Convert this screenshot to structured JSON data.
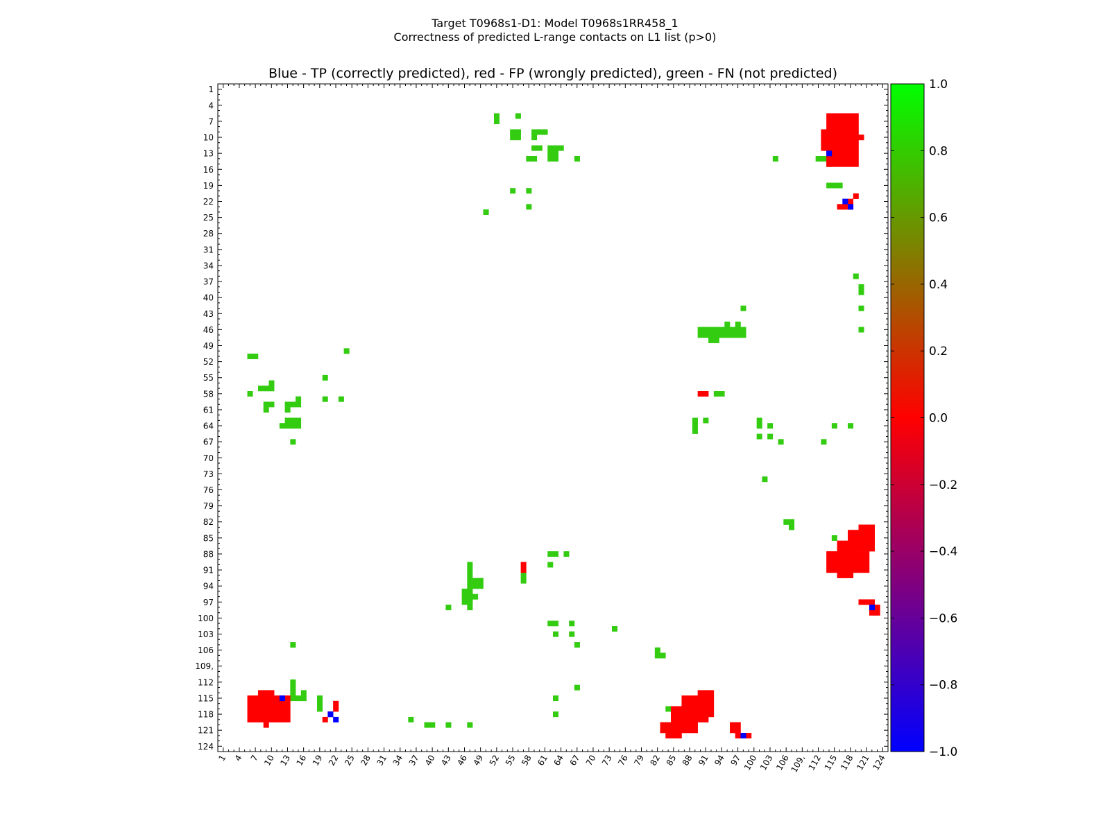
{
  "title_line1": "Target T0968s1-D1: Model T0968s1RR458_1",
  "title_line2": "Correctness of predicted L-range contacts on L1 list (p>0)",
  "axes_title": "Blue - TP (correctly predicted), red - FP (wrongly predicted), green - FN (not predicted)",
  "colors": {
    "tp": "#0000ff",
    "fp": "#ff0000",
    "fn": "#33cc11"
  },
  "chart_data": {
    "type": "heatmap",
    "x_range": [
      1,
      124
    ],
    "y_range": [
      1,
      124
    ],
    "y_inverted": true,
    "tick_values": [
      1,
      4,
      7,
      10,
      13,
      16,
      19,
      22,
      25,
      28,
      31,
      34,
      37,
      40,
      43,
      46,
      49,
      52,
      55,
      58,
      61,
      64,
      67,
      70,
      73,
      76,
      79,
      82,
      85,
      88,
      91,
      94,
      97,
      100,
      103,
      106,
      109,
      112,
      115,
      118,
      121,
      124
    ],
    "tick_labels": [
      "1",
      "4",
      "7",
      "10",
      "13",
      "16",
      "19",
      "22",
      "25",
      "28",
      "31",
      "34",
      "37",
      "40",
      "43",
      "46",
      "49",
      "52",
      "55",
      "58",
      "61",
      "64",
      "67",
      "70",
      "73",
      "76",
      "79",
      "82",
      "85",
      "88",
      "91",
      "94",
      "97",
      "100",
      "103",
      "106",
      "109,",
      "112",
      "115",
      "118",
      "121",
      "124"
    ],
    "colorbar": {
      "range": [
        -1.0,
        1.0
      ],
      "ticks": [
        "1.0",
        "0.8",
        "0.6",
        "0.4",
        "0.2",
        "0.0",
        "−0.2",
        "−0.4",
        "−0.6",
        "−0.8",
        "−1.0"
      ],
      "tick_values": [
        1.0,
        0.8,
        0.6,
        0.4,
        0.2,
        0.0,
        -0.2,
        -0.4,
        -0.6,
        -0.8,
        -1.0
      ],
      "stops": [
        "#0000ff",
        "#ff0000",
        "#00ff00"
      ]
    },
    "cell_types": {
      "tp": -1,
      "fp": 0,
      "fn": 1
    },
    "fp_blocks": [
      [
        114,
        6,
        119,
        15
      ],
      [
        113,
        9,
        115,
        12
      ],
      [
        120,
        10,
        120,
        10
      ],
      [
        116,
        23,
        118,
        23
      ],
      [
        119,
        21,
        119,
        21
      ],
      [
        118,
        22,
        118,
        22
      ],
      [
        116,
        86,
        119,
        90
      ],
      [
        114,
        88,
        121,
        91
      ],
      [
        118,
        84,
        122,
        87
      ],
      [
        120,
        83,
        122,
        85
      ],
      [
        116,
        91,
        118,
        92
      ],
      [
        120,
        97,
        122,
        97
      ],
      [
        122,
        98,
        123,
        99
      ],
      [
        6,
        115,
        13,
        119
      ],
      [
        8,
        114,
        10,
        114
      ],
      [
        9,
        120,
        9,
        120
      ],
      [
        22,
        116,
        22,
        117
      ],
      [
        21,
        118,
        21,
        118
      ],
      [
        20,
        119,
        20,
        119
      ],
      [
        85,
        117,
        89,
        121
      ],
      [
        87,
        115,
        91,
        119
      ],
      [
        83,
        120,
        86,
        121
      ],
      [
        90,
        114,
        92,
        118
      ],
      [
        84,
        122,
        86,
        122
      ],
      [
        96,
        120,
        97,
        121
      ],
      [
        97,
        122,
        99,
        122
      ],
      [
        57,
        90,
        57,
        91
      ],
      [
        90,
        58,
        91,
        58
      ]
    ],
    "tp_cells": [
      [
        114,
        13
      ],
      [
        117,
        22
      ],
      [
        118,
        23
      ],
      [
        122,
        98
      ],
      [
        12,
        115
      ],
      [
        21,
        118
      ],
      [
        22,
        119
      ],
      [
        98,
        122
      ]
    ],
    "fn_blocks": [
      [
        52,
        6,
        52,
        7
      ],
      [
        56,
        6,
        56,
        6
      ],
      [
        55,
        9,
        56,
        10
      ],
      [
        56,
        9,
        56,
        9
      ],
      [
        59,
        9,
        59,
        10
      ],
      [
        60,
        9,
        61,
        9
      ],
      [
        59,
        12,
        60,
        12
      ],
      [
        58,
        14,
        59,
        14
      ],
      [
        62,
        12,
        63,
        14
      ],
      [
        64,
        12,
        64,
        12
      ],
      [
        67,
        14,
        67,
        14
      ],
      [
        55,
        20,
        55,
        20
      ],
      [
        58,
        20,
        58,
        20
      ],
      [
        58,
        23,
        58,
        23
      ],
      [
        50,
        24,
        50,
        24
      ],
      [
        104,
        14,
        104,
        14
      ],
      [
        112,
        14,
        114,
        14
      ],
      [
        114,
        15,
        114,
        15
      ],
      [
        114,
        19,
        116,
        19
      ],
      [
        119,
        36,
        119,
        36
      ],
      [
        120,
        38,
        120,
        39
      ],
      [
        120,
        42,
        120,
        42
      ],
      [
        120,
        46,
        120,
        46
      ],
      [
        98,
        42,
        98,
        42
      ],
      [
        90,
        46,
        98,
        47
      ],
      [
        95,
        45,
        95,
        45
      ],
      [
        97,
        45,
        97,
        45
      ],
      [
        92,
        48,
        93,
        48
      ],
      [
        6,
        51,
        7,
        51
      ],
      [
        24,
        50,
        24,
        50
      ],
      [
        20,
        55,
        20,
        55
      ],
      [
        10,
        56,
        10,
        56
      ],
      [
        8,
        57,
        10,
        57
      ],
      [
        6,
        58,
        6,
        58
      ],
      [
        20,
        59,
        20,
        59
      ],
      [
        23,
        59,
        23,
        59
      ],
      [
        15,
        59,
        15,
        59
      ],
      [
        13,
        60,
        15,
        60
      ],
      [
        9,
        60,
        10,
        60
      ],
      [
        9,
        61,
        9,
        61
      ],
      [
        13,
        61,
        13,
        61
      ],
      [
        13,
        63,
        15,
        63
      ],
      [
        12,
        64,
        15,
        64
      ],
      [
        14,
        67,
        14,
        67
      ],
      [
        93,
        58,
        94,
        58
      ],
      [
        89,
        63,
        89,
        64
      ],
      [
        91,
        63,
        91,
        63
      ],
      [
        89,
        65,
        89,
        65
      ],
      [
        101,
        63,
        101,
        64
      ],
      [
        103,
        64,
        103,
        64
      ],
      [
        115,
        64,
        115,
        64
      ],
      [
        118,
        64,
        118,
        64
      ],
      [
        101,
        66,
        101,
        66
      ],
      [
        103,
        66,
        103,
        66
      ],
      [
        105,
        67,
        105,
        67
      ],
      [
        113,
        67,
        113,
        67
      ],
      [
        102,
        74,
        102,
        74
      ],
      [
        106,
        82,
        107,
        82
      ],
      [
        107,
        83,
        107,
        83
      ],
      [
        115,
        85,
        115,
        85
      ],
      [
        47,
        90,
        47,
        98
      ],
      [
        48,
        93,
        49,
        94
      ],
      [
        46,
        95,
        47,
        95
      ],
      [
        46,
        96,
        48,
        96
      ],
      [
        46,
        97,
        47,
        97
      ],
      [
        43,
        98,
        43,
        98
      ],
      [
        57,
        92,
        57,
        93
      ],
      [
        62,
        88,
        63,
        88
      ],
      [
        65,
        88,
        65,
        88
      ],
      [
        62,
        90,
        62,
        90
      ],
      [
        62,
        101,
        63,
        101
      ],
      [
        66,
        101,
        66,
        101
      ],
      [
        63,
        103,
        63,
        103
      ],
      [
        66,
        103,
        66,
        103
      ],
      [
        67,
        105,
        67,
        105
      ],
      [
        74,
        102,
        74,
        102
      ],
      [
        82,
        106,
        82,
        107
      ],
      [
        83,
        107,
        83,
        107
      ],
      [
        67,
        113,
        67,
        113
      ],
      [
        63,
        115,
        63,
        115
      ],
      [
        63,
        118,
        63,
        118
      ],
      [
        14,
        105,
        14,
        105
      ],
      [
        14,
        112,
        14,
        115
      ],
      [
        15,
        115,
        16,
        115
      ],
      [
        16,
        114,
        16,
        114
      ],
      [
        19,
        115,
        19,
        117
      ],
      [
        36,
        119,
        36,
        119
      ],
      [
        39,
        120,
        40,
        120
      ],
      [
        43,
        120,
        43,
        120
      ],
      [
        47,
        120,
        47,
        120
      ],
      [
        84,
        117,
        84,
        117
      ]
    ]
  }
}
